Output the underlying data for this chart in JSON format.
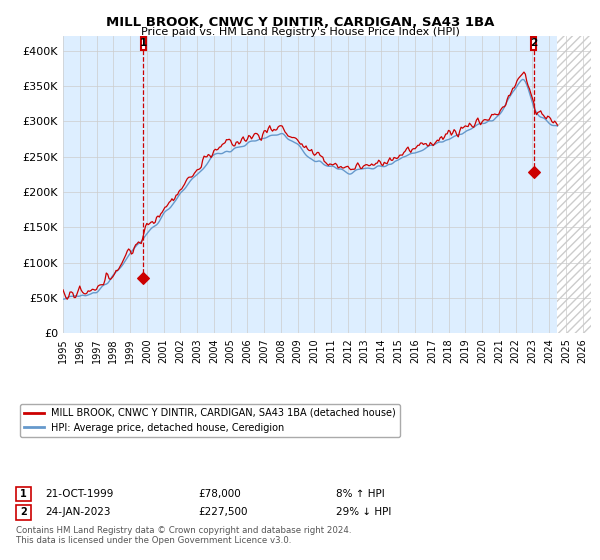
{
  "title": "MILL BROOK, CNWC Y DINTIR, CARDIGAN, SA43 1BA",
  "subtitle": "Price paid vs. HM Land Registry's House Price Index (HPI)",
  "ylim": [
    0,
    420000
  ],
  "xlim_start": 1995.0,
  "xlim_end": 2026.5,
  "yticks": [
    0,
    50000,
    100000,
    150000,
    200000,
    250000,
    300000,
    350000,
    400000
  ],
  "ytick_labels": [
    "£0",
    "£50K",
    "£100K",
    "£150K",
    "£200K",
    "£250K",
    "£300K",
    "£350K",
    "£400K"
  ],
  "xticks": [
    1995,
    1996,
    1997,
    1998,
    1999,
    2000,
    2001,
    2002,
    2003,
    2004,
    2005,
    2006,
    2007,
    2008,
    2009,
    2010,
    2011,
    2012,
    2013,
    2014,
    2015,
    2016,
    2017,
    2018,
    2019,
    2020,
    2021,
    2022,
    2023,
    2024,
    2025,
    2026
  ],
  "red_line_color": "#cc0000",
  "blue_line_color": "#6699cc",
  "blue_bg_color": "#ddeeff",
  "hatch_color": "#cccccc",
  "grid_color": "#cccccc",
  "bg_color": "#ffffff",
  "legend_line1": "MILL BROOK, CNWC Y DINTIR, CARDIGAN, SA43 1BA (detached house)",
  "legend_line2": "HPI: Average price, detached house, Ceredigion",
  "marker1_x": 1999.8,
  "marker1_price_y": 78000,
  "marker2_x": 2023.07,
  "marker2_price_y": 227500,
  "data_end_x": 2024.5,
  "annotation1": "21-OCT-1999",
  "annotation1_price": "£78,000",
  "annotation1_hpi": "8% ↑ HPI",
  "annotation2": "24-JAN-2023",
  "annotation2_price": "£227,500",
  "annotation2_hpi": "29% ↓ HPI",
  "footer1": "Contains HM Land Registry data © Crown copyright and database right 2024.",
  "footer2": "This data is licensed under the Open Government Licence v3.0."
}
